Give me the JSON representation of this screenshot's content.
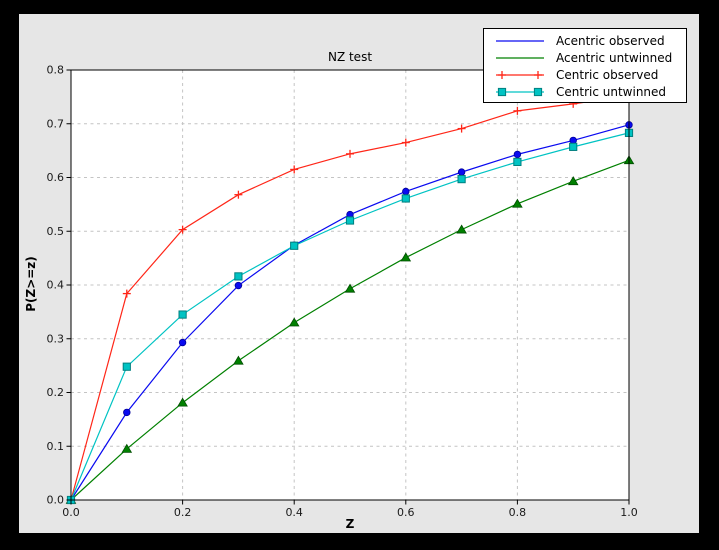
{
  "window": {
    "frame_color": "#000000",
    "figure_bg": "#e6e6e6",
    "plot_bg": "#ffffff",
    "axis_color": "#000000",
    "tick_label_color": "#1a1a1a"
  },
  "chart_data": {
    "type": "line",
    "title": "NZ test",
    "xlabel": "Z",
    "ylabel": "P(Z>=z)",
    "xlim": [
      0.0,
      1.0
    ],
    "ylim": [
      0.0,
      0.8
    ],
    "x_ticks": [
      0.0,
      0.2,
      0.4,
      0.6,
      0.8,
      1.0
    ],
    "x_tick_labels": [
      "0.0",
      "0.2",
      "0.4",
      "0.6",
      "0.8",
      "1.0"
    ],
    "y_ticks": [
      0.0,
      0.1,
      0.2,
      0.3,
      0.4,
      0.5,
      0.6,
      0.7,
      0.8
    ],
    "y_tick_labels": [
      "0.0",
      "0.1",
      "0.2",
      "0.3",
      "0.4",
      "0.5",
      "0.6",
      "0.7",
      "0.8"
    ],
    "grid": {
      "on": true,
      "color": "#c4c4c4",
      "style": "dashed"
    },
    "legend_position": "upper right",
    "x": [
      0.0,
      0.1,
      0.2,
      0.3,
      0.4,
      0.5,
      0.6,
      0.7,
      0.8,
      0.9,
      1.0
    ],
    "series": [
      {
        "name": "Acentric observed",
        "color": "#0a0af0",
        "edge": "#000099",
        "marker": "circle",
        "legend_markers": false,
        "values": [
          0.0,
          0.163,
          0.293,
          0.399,
          0.474,
          0.531,
          0.574,
          0.61,
          0.643,
          0.669,
          0.698
        ]
      },
      {
        "name": "Acentric untwinned",
        "color": "#008000",
        "edge": "#004d00",
        "marker": "triangle",
        "legend_markers": false,
        "values": [
          0.0,
          0.095,
          0.181,
          0.259,
          0.33,
          0.393,
          0.451,
          0.503,
          0.551,
          0.593,
          0.632
        ]
      },
      {
        "name": "Centric observed",
        "color": "#ff2618",
        "edge": "#ff2618",
        "marker": "plus",
        "legend_markers": true,
        "values": [
          0.0,
          0.384,
          0.503,
          0.568,
          0.615,
          0.644,
          0.665,
          0.691,
          0.724,
          0.737,
          0.752
        ]
      },
      {
        "name": "Centric untwinned",
        "color": "#00c3c3",
        "edge": "#007f7f",
        "marker": "square",
        "legend_markers": true,
        "values": [
          0.0,
          0.248,
          0.345,
          0.416,
          0.473,
          0.52,
          0.561,
          0.597,
          0.629,
          0.657,
          0.683
        ]
      }
    ]
  }
}
